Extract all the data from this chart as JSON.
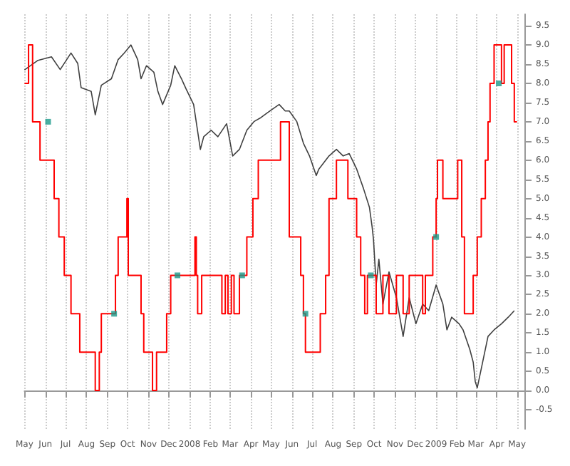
{
  "chart_data": {
    "type": "line",
    "grid": "x",
    "xlim": [
      "2007-05-01",
      "2009-05-12"
    ],
    "xticks": [
      {
        "value": "2007-05-01",
        "label": "May"
      },
      {
        "value": "2007-06-01",
        "label": "Jun"
      },
      {
        "value": "2007-07-01",
        "label": "Jul"
      },
      {
        "value": "2007-08-01",
        "label": "Aug"
      },
      {
        "value": "2007-09-01",
        "label": "Sep"
      },
      {
        "value": "2007-10-01",
        "label": "Oct"
      },
      {
        "value": "2007-11-01",
        "label": "Nov"
      },
      {
        "value": "2007-12-01",
        "label": "Dec"
      },
      {
        "value": "2008-01-01",
        "label": "2008"
      },
      {
        "value": "2008-02-01",
        "label": "Feb"
      },
      {
        "value": "2008-03-01",
        "label": "Mar"
      },
      {
        "value": "2008-04-01",
        "label": "Apr"
      },
      {
        "value": "2008-05-01",
        "label": "May"
      },
      {
        "value": "2008-06-01",
        "label": "Jun"
      },
      {
        "value": "2008-07-01",
        "label": "Jul"
      },
      {
        "value": "2008-08-01",
        "label": "Aug"
      },
      {
        "value": "2008-09-01",
        "label": "Sep"
      },
      {
        "value": "2008-10-01",
        "label": "Oct"
      },
      {
        "value": "2008-11-01",
        "label": "Nov"
      },
      {
        "value": "2008-12-01",
        "label": "Dec"
      },
      {
        "value": "2009-01-01",
        "label": "2009"
      },
      {
        "value": "2009-02-01",
        "label": "Feb"
      },
      {
        "value": "2009-03-01",
        "label": "Mar"
      },
      {
        "value": "2009-04-01",
        "label": "Apr"
      },
      {
        "value": "2009-05-01",
        "label": "May"
      }
    ],
    "ylim": [
      -1,
      9.8
    ],
    "yticks": [
      -0.5,
      {
        "value": 0,
        "label": "0.0"
      },
      0.5,
      {
        "value": 1,
        "label": "1.0"
      },
      1.5,
      {
        "value": 2,
        "label": "2.0"
      },
      2.5,
      {
        "value": 3,
        "label": "3.0"
      },
      3.5,
      {
        "value": 4,
        "label": "4.0"
      },
      4.5,
      {
        "value": 5,
        "label": "5.0"
      },
      5.5,
      {
        "value": 6,
        "label": "6.0"
      },
      6.5,
      {
        "value": 7,
        "label": "7.0"
      },
      7.5,
      {
        "value": 8,
        "label": "8.0"
      },
      8.5,
      {
        "value": 9,
        "label": "9.0"
      },
      9.5
    ],
    "series": [
      {
        "color": "#404040",
        "x": [
          "2007-05-01",
          "2007-05-21",
          "2007-06-10",
          "2007-06-23",
          "2007-07-09",
          "2007-07-19",
          "2007-07-24",
          "2007-08-08",
          "2007-08-14",
          "2007-08-23",
          "2007-09-07",
          "2007-09-17",
          "2007-09-26",
          "2007-10-06",
          "2007-10-16",
          "2007-10-21",
          "2007-10-29",
          "2007-11-09",
          "2007-11-15",
          "2007-11-22",
          "2007-12-04",
          "2007-12-10",
          "2007-12-20",
          "2007-12-27",
          "2008-01-07",
          "2008-01-17",
          "2008-01-22",
          "2008-02-02",
          "2008-02-12",
          "2008-02-25",
          "2008-03-05",
          "2008-03-15",
          "2008-03-26",
          "2008-04-06",
          "2008-04-16",
          "2008-04-29",
          "2008-05-13",
          "2008-05-22",
          "2008-05-28",
          "2008-06-08",
          "2008-06-18",
          "2008-06-27",
          "2008-07-07",
          "2008-07-11",
          "2008-07-26",
          "2008-08-06",
          "2008-08-16",
          "2008-08-25",
          "2008-09-05",
          "2008-09-15",
          "2008-09-24",
          "2008-09-28",
          "2008-09-30",
          "2008-10-04",
          "2008-10-08",
          "2008-10-14",
          "2008-10-23",
          "2008-11-03",
          "2008-11-13",
          "2008-11-22",
          "2008-12-02",
          "2008-12-12",
          "2008-12-21",
          "2009-01-01",
          "2009-01-11",
          "2009-01-17",
          "2009-01-24",
          "2009-02-04",
          "2009-02-10",
          "2009-02-20",
          "2009-02-25",
          "2009-02-28",
          "2009-03-03",
          "2009-03-09",
          "2009-03-19",
          "2009-03-28",
          "2009-04-08",
          "2009-04-18",
          "2009-04-27"
        ],
        "values": [
          8.35,
          8.6,
          8.69,
          8.36,
          8.79,
          8.52,
          7.89,
          7.79,
          7.18,
          7.95,
          8.12,
          8.62,
          8.79,
          9.0,
          8.62,
          8.12,
          8.46,
          8.29,
          7.79,
          7.45,
          7.95,
          8.46,
          8.12,
          7.85,
          7.45,
          6.28,
          6.61,
          6.78,
          6.61,
          6.95,
          6.11,
          6.28,
          6.78,
          7.01,
          7.11,
          7.28,
          7.45,
          7.28,
          7.28,
          7.01,
          6.44,
          6.11,
          5.6,
          5.77,
          6.11,
          6.28,
          6.11,
          6.17,
          5.77,
          5.27,
          4.77,
          4.26,
          3.93,
          2.75,
          3.42,
          2.25,
          3.09,
          2.42,
          1.41,
          2.42,
          1.74,
          2.25,
          2.08,
          2.75,
          2.25,
          1.58,
          1.91,
          1.74,
          1.58,
          1.07,
          0.74,
          0.24,
          0.07,
          0.57,
          1.41,
          1.58,
          1.74,
          1.91,
          2.08
        ]
      },
      {
        "type": "step",
        "color": "#ff0000",
        "x": [
          "2007-05-01",
          "2007-05-07",
          "2007-05-13",
          "2007-05-24",
          "2007-06-14",
          "2007-06-21",
          "2007-06-29",
          "2007-07-09",
          "2007-07-22",
          "2007-08-14",
          "2007-08-20",
          "2007-08-23",
          "2007-09-13",
          "2007-09-17",
          "2007-09-30",
          "2007-10-02",
          "2007-10-21",
          "2007-10-25",
          "2007-11-07",
          "2007-11-13",
          "2007-11-28",
          "2007-12-04",
          "2008-01-09",
          "2008-01-11",
          "2008-01-13",
          "2008-01-19",
          "2008-02-18",
          "2008-02-23",
          "2008-02-27",
          "2008-03-03",
          "2008-03-07",
          "2008-03-15",
          "2008-03-26",
          "2008-04-04",
          "2008-04-12",
          "2008-05-15",
          "2008-05-28",
          "2008-06-14",
          "2008-06-18",
          "2008-06-21",
          "2008-07-13",
          "2008-07-21",
          "2008-07-26",
          "2008-08-06",
          "2008-08-23",
          "2008-09-05",
          "2008-09-11",
          "2008-09-17",
          "2008-09-21",
          "2008-10-04",
          "2008-10-14",
          "2008-10-23",
          "2008-11-03",
          "2008-11-13",
          "2008-11-22",
          "2008-12-12",
          "2008-12-16",
          "2008-12-27",
          "2009-01-01",
          "2009-01-03",
          "2009-01-11",
          "2009-02-02",
          "2009-02-08",
          "2009-02-12",
          "2009-02-25",
          "2009-03-03",
          "2009-03-09",
          "2009-03-15",
          "2009-03-19",
          "2009-03-22",
          "2009-03-28",
          "2009-04-08",
          "2009-04-12",
          "2009-04-23",
          "2009-04-27",
          "2009-05-01"
        ],
        "values": [
          8,
          9,
          7,
          6,
          5,
          4,
          3,
          2,
          1,
          0,
          1,
          2,
          3,
          4,
          5,
          3,
          2,
          1,
          0,
          1,
          2,
          3,
          4,
          3,
          2,
          3,
          2,
          3,
          2,
          3,
          2,
          3,
          4,
          5,
          6,
          7,
          4,
          3,
          2,
          1,
          2,
          3,
          5,
          6,
          5,
          4,
          3,
          2,
          3,
          2,
          3,
          2,
          3,
          2,
          3,
          2,
          3,
          4,
          5,
          6,
          5,
          6,
          4,
          2,
          3,
          4,
          5,
          6,
          7,
          8,
          9,
          8,
          9,
          8,
          7,
          7
        ]
      },
      {
        "type": "scatter",
        "color": "#1a9a8a",
        "marker": "square",
        "x": [
          "2007-06-05",
          "2007-09-11",
          "2007-12-14",
          "2008-03-19",
          "2008-06-21",
          "2008-09-26",
          "2009-01-01",
          "2009-04-04"
        ],
        "values": [
          7,
          2,
          3,
          3,
          2,
          3,
          4,
          8
        ]
      }
    ]
  }
}
